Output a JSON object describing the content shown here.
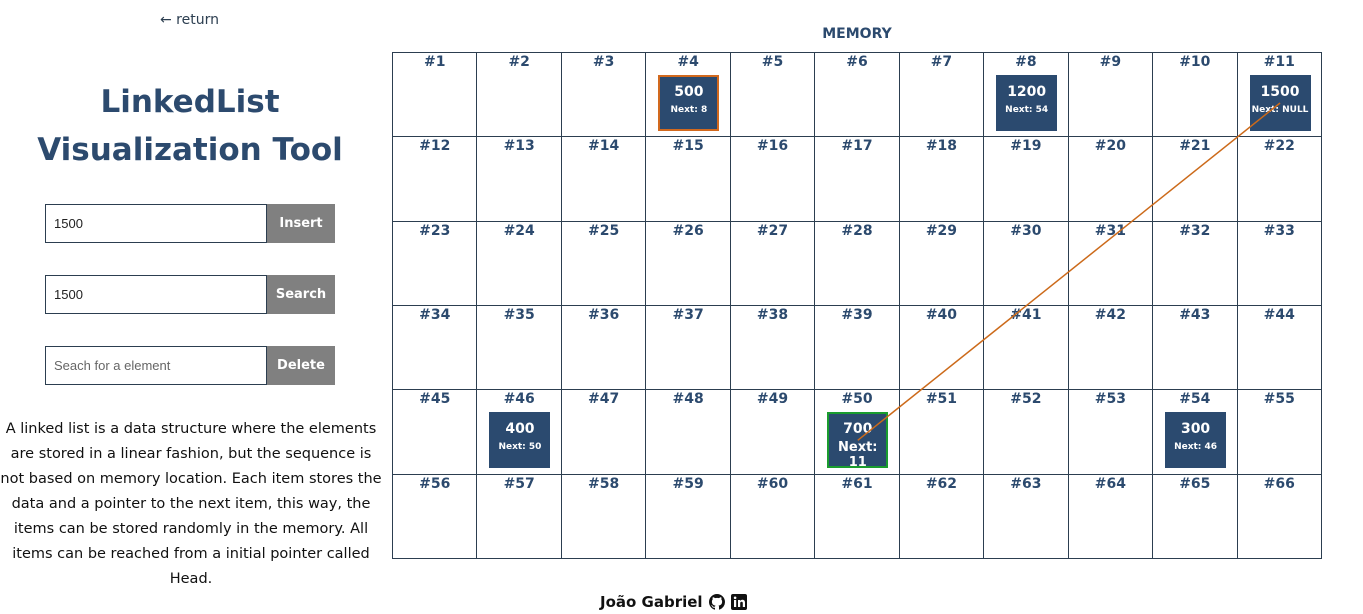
{
  "nav": {
    "return_label": "← return"
  },
  "title": "LinkedList Visualization Tool",
  "forms": {
    "insert": {
      "value": "1500",
      "placeholder": "",
      "button": "Insert"
    },
    "search": {
      "value": "1500",
      "placeholder": "",
      "button": "Search"
    },
    "delete": {
      "value": "",
      "placeholder": "Seach for a element",
      "button": "Delete"
    }
  },
  "description": "A linked list is a data structure where the elements are stored in a linear fashion, but the sequence is not based on memory location. Each item stores the data and a pointer to the next item, this way, the items can be stored randomly in the memory. All items can be reached from a initial pointer called Head.",
  "memory": {
    "title": "MEMORY",
    "cell_count": 66,
    "columns": 11,
    "nodes": [
      {
        "address": 4,
        "value": "500",
        "next": "Next: 8",
        "state": "head"
      },
      {
        "address": 8,
        "value": "1200",
        "next": "Next: 54",
        "state": "normal"
      },
      {
        "address": 11,
        "value": "1500",
        "next": "Next: NULL",
        "state": "normal"
      },
      {
        "address": 46,
        "value": "400",
        "next": "Next: 50",
        "state": "normal"
      },
      {
        "address": 50,
        "value": "700",
        "next": "Next: 11",
        "state": "found"
      },
      {
        "address": 54,
        "value": "300",
        "next": "Next: 46",
        "state": "normal"
      }
    ],
    "pointer_line": {
      "from": 50,
      "to": 11,
      "color": "#cc6a1a"
    }
  },
  "footer": {
    "author": "João Gabriel",
    "icons": [
      "github-icon",
      "linkedin-icon"
    ]
  }
}
